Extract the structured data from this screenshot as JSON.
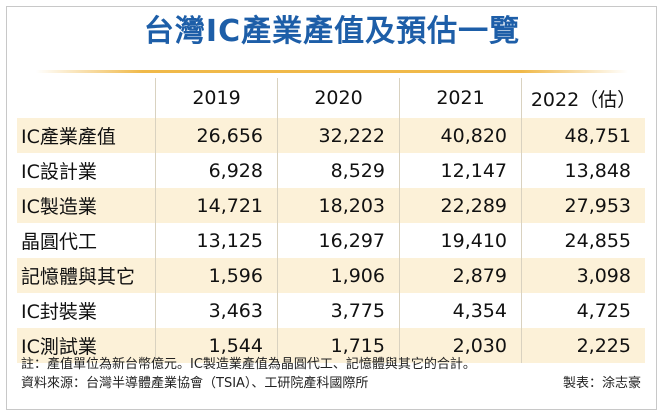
{
  "title": "台灣IC產業產值及預估一覽",
  "colors": {
    "title": "#1d5ea8",
    "accent_rule": "#f0b949",
    "shaded_row": "#fcf1d8"
  },
  "table": {
    "headers": [
      "",
      "2019",
      "2020",
      "2021",
      "2022（估）"
    ],
    "rows": [
      {
        "label": "IC產業產值",
        "values": [
          "26,656",
          "32,222",
          "40,820",
          "48,751"
        ]
      },
      {
        "label": "IC設計業",
        "values": [
          "6,928",
          "8,529",
          "12,147",
          "13,848"
        ]
      },
      {
        "label": "IC製造業",
        "values": [
          "14,721",
          "18,203",
          "22,289",
          "27,953"
        ]
      },
      {
        "label": "晶圓代工",
        "values": [
          "13,125",
          "16,297",
          "19,410",
          "24,855"
        ]
      },
      {
        "label": "記憶體與其它",
        "values": [
          "1,596",
          "1,906",
          "2,879",
          "3,098"
        ]
      },
      {
        "label": "IC封裝業",
        "values": [
          "3,463",
          "3,775",
          "4,354",
          "4,725"
        ]
      },
      {
        "label": "IC測試業",
        "values": [
          "1,544",
          "1,715",
          "2,030",
          "2,225"
        ]
      }
    ]
  },
  "notes": {
    "note": "註：產值單位為新台幣億元。IC製造業產值為晶圓代工、記憶體與其它的合計。",
    "source": "資料來源：台灣半導體產業協會（TSIA）、工研院產科國際所",
    "credit": "製表：涂志豪"
  }
}
